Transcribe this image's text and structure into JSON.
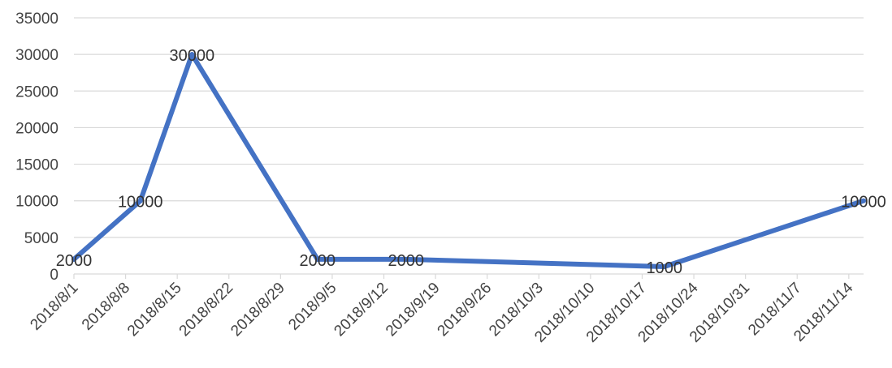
{
  "chart_data": {
    "type": "line",
    "title": "",
    "xlabel": "",
    "ylabel": "",
    "x_tick_labels": [
      "2018/8/1",
      "2018/8/8",
      "2018/8/15",
      "2018/8/22",
      "2018/8/29",
      "2018/9/5",
      "2018/9/12",
      "2018/9/19",
      "2018/9/26",
      "2018/10/3",
      "2018/10/10",
      "2018/10/17",
      "2018/10/24",
      "2018/10/31",
      "2018/11/7",
      "2018/11/14"
    ],
    "x_range": [
      "2018-08-01",
      "2018-11-16"
    ],
    "ylim": [
      0,
      35000
    ],
    "y_ticks": [
      0,
      5000,
      10000,
      15000,
      20000,
      25000,
      30000,
      35000
    ],
    "grid": "horizontal",
    "legend": "none",
    "color": "#4472C4",
    "series": [
      {
        "points": [
          {
            "x": "2018-08-01",
            "y": 2000,
            "label": "2000"
          },
          {
            "x": "2018-08-10",
            "y": 10000,
            "label": "10000"
          },
          {
            "x": "2018-08-17",
            "y": 30000,
            "label": "30000"
          },
          {
            "x": "2018-09-03",
            "y": 2000,
            "label": "2000"
          },
          {
            "x": "2018-09-15",
            "y": 2000,
            "label": "2000"
          },
          {
            "x": "2018-10-20",
            "y": 1000,
            "label": "1000"
          },
          {
            "x": "2018-11-16",
            "y": 10000,
            "label": "10000"
          }
        ]
      }
    ]
  }
}
